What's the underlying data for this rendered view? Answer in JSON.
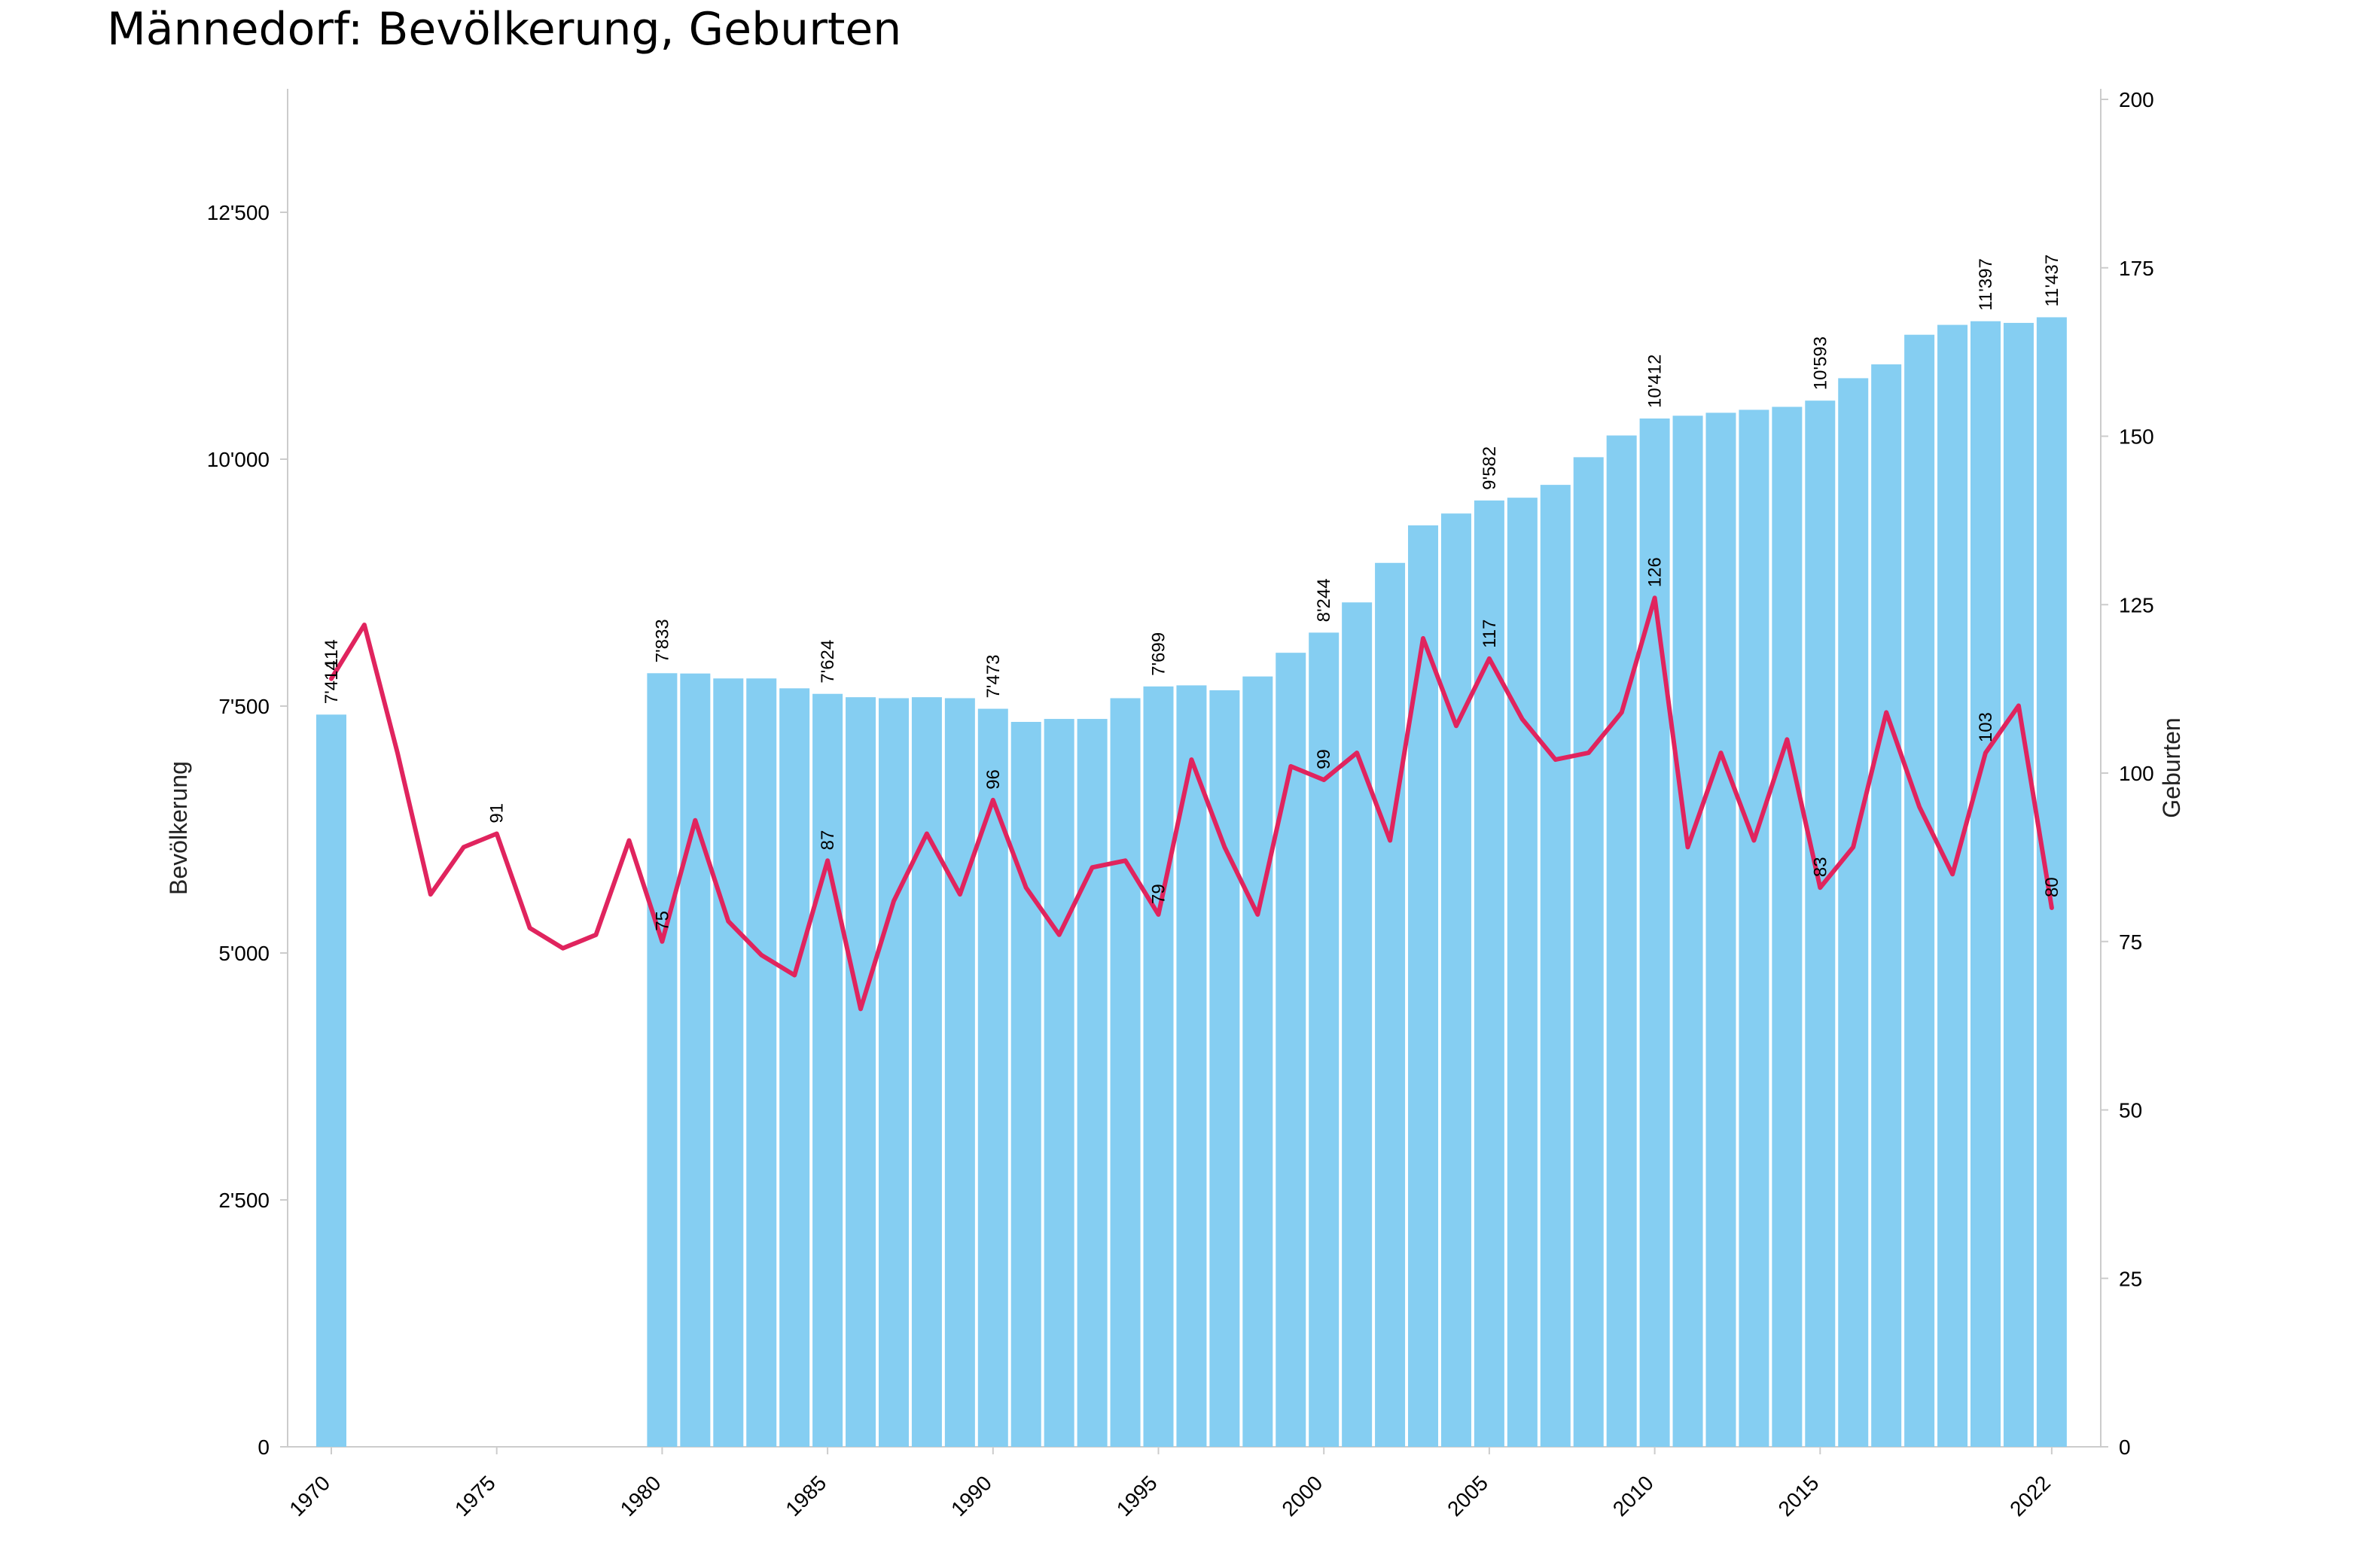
{
  "title": "Männedorf: Bevölkerung, Geburten",
  "colors": {
    "bars": "#85cef2",
    "line": "#e0245e"
  },
  "chart_data": {
    "type": "bar",
    "title": "Männedorf: Bevölkerung, Geburten",
    "x_ticks": [
      "1970",
      "1975",
      "1980",
      "1985",
      "1990",
      "1995",
      "2000",
      "2005",
      "2010",
      "2015",
      "2022"
    ],
    "y_left": {
      "label": "Bevölkerung",
      "range": [
        0,
        13750
      ],
      "ticks": [
        0,
        2500,
        5000,
        7500,
        10000,
        12500
      ],
      "tick_labels": [
        "0",
        "2'500",
        "5'000",
        "7'500",
        "10'000",
        "12'500"
      ]
    },
    "y_right": {
      "label": "Geburten",
      "range": [
        0,
        200
      ],
      "ticks": [
        0,
        25,
        50,
        75,
        100,
        125,
        150,
        175,
        200
      ],
      "tick_labels": [
        "0",
        "25",
        "50",
        "75",
        "100",
        "125",
        "150",
        "175",
        "200"
      ]
    },
    "series": [
      {
        "name": "Bevölkerung",
        "type": "bar",
        "axis": "left",
        "points": [
          [
            1970,
            7414
          ],
          [
            1980,
            7833
          ],
          [
            1981,
            7830
          ],
          [
            1982,
            7780
          ],
          [
            1983,
            7780
          ],
          [
            1984,
            7680
          ],
          [
            1985,
            7624
          ],
          [
            1986,
            7590
          ],
          [
            1987,
            7580
          ],
          [
            1988,
            7590
          ],
          [
            1989,
            7580
          ],
          [
            1990,
            7473
          ],
          [
            1991,
            7340
          ],
          [
            1992,
            7370
          ],
          [
            1993,
            7370
          ],
          [
            1994,
            7580
          ],
          [
            1995,
            7699
          ],
          [
            1996,
            7710
          ],
          [
            1997,
            7660
          ],
          [
            1998,
            7800
          ],
          [
            1999,
            8040
          ],
          [
            2000,
            8244
          ],
          [
            2001,
            8550
          ],
          [
            2002,
            8950
          ],
          [
            2003,
            9330
          ],
          [
            2004,
            9450
          ],
          [
            2005,
            9582
          ],
          [
            2006,
            9610
          ],
          [
            2007,
            9740
          ],
          [
            2008,
            10020
          ],
          [
            2009,
            10240
          ],
          [
            2010,
            10412
          ],
          [
            2011,
            10440
          ],
          [
            2012,
            10470
          ],
          [
            2013,
            10500
          ],
          [
            2014,
            10530
          ],
          [
            2015,
            10593
          ],
          [
            2016,
            10820
          ],
          [
            2017,
            10960
          ],
          [
            2018,
            11260
          ],
          [
            2019,
            11360
          ],
          [
            2020,
            11397
          ],
          [
            2021,
            11380
          ],
          [
            2022,
            11437
          ]
        ]
      },
      {
        "name": "Geburten",
        "type": "line",
        "axis": "right",
        "points": [
          [
            1970,
            114
          ],
          [
            1971,
            122
          ],
          [
            1972,
            103
          ],
          [
            1973,
            82
          ],
          [
            1974,
            89
          ],
          [
            1975,
            91
          ],
          [
            1976,
            77
          ],
          [
            1977,
            74
          ],
          [
            1978,
            76
          ],
          [
            1979,
            90
          ],
          [
            1980,
            75
          ],
          [
            1981,
            93
          ],
          [
            1982,
            78
          ],
          [
            1983,
            73
          ],
          [
            1984,
            70
          ],
          [
            1985,
            87
          ],
          [
            1986,
            65
          ],
          [
            1987,
            81
          ],
          [
            1988,
            91
          ],
          [
            1989,
            82
          ],
          [
            1990,
            96
          ],
          [
            1991,
            83
          ],
          [
            1992,
            76
          ],
          [
            1993,
            86
          ],
          [
            1994,
            87
          ],
          [
            1995,
            79
          ],
          [
            1996,
            102
          ],
          [
            1997,
            89
          ],
          [
            1998,
            79
          ],
          [
            1999,
            101
          ],
          [
            2000,
            99
          ],
          [
            2001,
            103
          ],
          [
            2002,
            90
          ],
          [
            2003,
            120
          ],
          [
            2004,
            107
          ],
          [
            2005,
            117
          ],
          [
            2006,
            108
          ],
          [
            2007,
            102
          ],
          [
            2008,
            103
          ],
          [
            2009,
            109
          ],
          [
            2010,
            126
          ],
          [
            2011,
            89
          ],
          [
            2012,
            103
          ],
          [
            2013,
            90
          ],
          [
            2014,
            105
          ],
          [
            2015,
            83
          ],
          [
            2016,
            89
          ],
          [
            2017,
            109
          ],
          [
            2018,
            95
          ],
          [
            2019,
            85
          ],
          [
            2020,
            103
          ],
          [
            2021,
            110
          ],
          [
            2022,
            80
          ]
        ]
      }
    ],
    "bar_labels": [
      {
        "x": 1970,
        "text": "7'414"
      },
      {
        "x": 1980,
        "text": "7'833"
      },
      {
        "x": 1985,
        "text": "7'624"
      },
      {
        "x": 1990,
        "text": "7'473"
      },
      {
        "x": 1995,
        "text": "7'699"
      },
      {
        "x": 2000,
        "text": "8'244"
      },
      {
        "x": 2005,
        "text": "9'582"
      },
      {
        "x": 2010,
        "text": "10'412"
      },
      {
        "x": 2015,
        "text": "10'593"
      },
      {
        "x": 2020,
        "text": "11'397"
      },
      {
        "x": 2022,
        "text": "11'437"
      }
    ],
    "line_labels": [
      {
        "x": 1970,
        "text": "114"
      },
      {
        "x": 1975,
        "text": "91"
      },
      {
        "x": 1980,
        "text": "75"
      },
      {
        "x": 1985,
        "text": "87"
      },
      {
        "x": 1990,
        "text": "96"
      },
      {
        "x": 1995,
        "text": "79"
      },
      {
        "x": 2000,
        "text": "99"
      },
      {
        "x": 2005,
        "text": "117"
      },
      {
        "x": 2010,
        "text": "126"
      },
      {
        "x": 2015,
        "text": "83"
      },
      {
        "x": 2020,
        "text": "103"
      },
      {
        "x": 2022,
        "text": "80"
      }
    ],
    "grid": false,
    "legend": "none"
  }
}
